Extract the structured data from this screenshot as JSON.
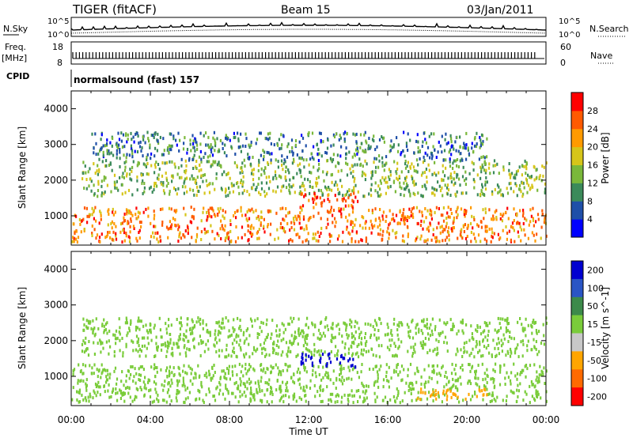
{
  "header": {
    "radar": "TIGER (fitACF)",
    "beam": "Beam 15",
    "date": "03/Jan/2011"
  },
  "nsky_panel": {
    "left_label": "N.Sky",
    "right_label": "N.Search",
    "left_ticks": [
      "10^5",
      "10^0"
    ],
    "right_ticks": [
      "10^5",
      "10^0"
    ]
  },
  "freq_panel": {
    "left_label_line1": "Freq.",
    "left_label_line2": "[MHz]",
    "right_label": "Nave",
    "left_ticks": [
      18,
      8
    ],
    "right_ticks": [
      60,
      0
    ]
  },
  "cpid_panel": {
    "label": "CPID",
    "value": "normalsound (fast) 157"
  },
  "time_axis": {
    "label": "Time UT",
    "ticks": [
      "00:00",
      "04:00",
      "08:00",
      "12:00",
      "16:00",
      "20:00",
      "00:00"
    ]
  },
  "chart_data": [
    {
      "type": "heatmap",
      "title": "",
      "xlabel": "Time UT",
      "ylabel": "Slant Range [km]",
      "x_range_hours": [
        0,
        24
      ],
      "ylim": [
        180,
        4500
      ],
      "y_ticks": [
        1000,
        2000,
        3000,
        4000
      ],
      "colorbar": {
        "label": "Power [dB]",
        "ticks": [
          4,
          8,
          12,
          16,
          20,
          24,
          28
        ],
        "range": [
          0,
          32
        ],
        "colors": [
          "#0000ff",
          "#1f4fa8",
          "#3b8a5a",
          "#7ab83a",
          "#d6c51a",
          "#ff9a00",
          "#ff5a00",
          "#ff0000"
        ]
      },
      "scatter_regions": [
        {
          "t_start": 0.0,
          "t_end": 24.0,
          "r_min": 220,
          "r_max": 1200,
          "value": 24
        },
        {
          "t_start": 0.5,
          "t_end": 24.0,
          "r_min": 1500,
          "r_max": 2500,
          "value": 14
        },
        {
          "t_start": 1.0,
          "t_end": 21.0,
          "r_min": 2500,
          "r_max": 3300,
          "value": 9
        },
        {
          "t_start": 11.5,
          "t_end": 14.5,
          "r_min": 1200,
          "r_max": 1600,
          "value": 27
        }
      ]
    },
    {
      "type": "heatmap",
      "title": "",
      "xlabel": "Time UT",
      "ylabel": "Slant Range [km]",
      "x_range_hours": [
        0,
        24
      ],
      "ylim": [
        180,
        4500
      ],
      "y_ticks": [
        1000,
        2000,
        3000,
        4000
      ],
      "colorbar": {
        "label": "Velocity [m s^-1]",
        "ticks": [
          200,
          100,
          50,
          15,
          -15,
          -50,
          -100,
          -200
        ],
        "colors": [
          "#0000d0",
          "#2a55c5",
          "#3c8a4a",
          "#7acc3a",
          "#c8c8c8",
          "#ffa500",
          "#ff6a00",
          "#ff0000"
        ]
      },
      "scatter_regions": [
        {
          "t_start": 0.0,
          "t_end": 24.0,
          "r_min": 220,
          "r_max": 1300,
          "value": 0
        },
        {
          "t_start": 0.5,
          "t_end": 24.0,
          "r_min": 1500,
          "r_max": 2600,
          "value": 0
        },
        {
          "t_start": 11.5,
          "t_end": 14.5,
          "r_min": 1200,
          "r_max": 1600,
          "value": 180
        },
        {
          "t_start": 17.0,
          "t_end": 21.0,
          "r_min": 300,
          "r_max": 600,
          "value": -60
        }
      ]
    }
  ]
}
